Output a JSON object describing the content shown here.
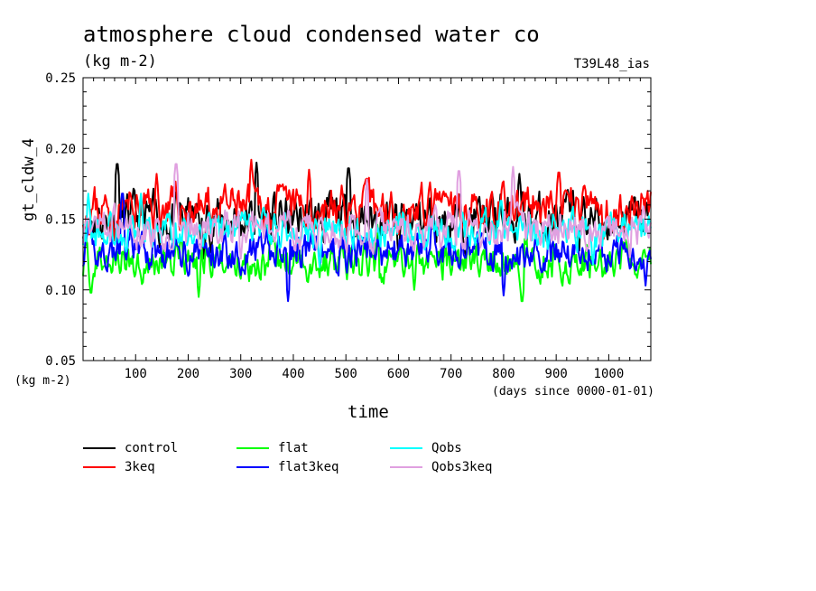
{
  "header": {
    "title": "atmosphere cloud condensed water co",
    "units": "(kg m-2)",
    "run_id": "T39L48_ias"
  },
  "chart_data": {
    "type": "line",
    "title": "atmosphere cloud condensed water co",
    "ylabel": "gt_cldw_4",
    "yunit": "(kg m-2)",
    "xlabel": "time",
    "xunit": "(days since 0000-01-01)",
    "xlim": [
      0,
      1080
    ],
    "ylim": [
      0.05,
      0.25
    ],
    "xticks": [
      100,
      200,
      300,
      400,
      500,
      600,
      700,
      800,
      900,
      1000
    ],
    "xtick_labels": [
      "100",
      "200",
      "300",
      "400",
      "500",
      "600",
      "700",
      "800",
      "900",
      "1000"
    ],
    "yticks": [
      0.05,
      0.1,
      0.15,
      0.2,
      0.25
    ],
    "ytick_labels": [
      "0.05",
      "0.10",
      "0.15",
      "0.20",
      "0.25"
    ],
    "grid": false,
    "legend_position": "bottom",
    "series": [
      {
        "name": "control",
        "color": "#000000",
        "mean": 0.15,
        "amp": 0.016,
        "seed": 11,
        "peaks": [
          [
            65,
            0.193
          ],
          [
            330,
            0.19
          ],
          [
            505,
            0.19
          ],
          [
            830,
            0.182
          ]
        ],
        "troughs": [
          [
            230,
            0.122
          ],
          [
            600,
            0.125
          ]
        ]
      },
      {
        "name": "3keq",
        "color": "#ff0000",
        "mean": 0.158,
        "amp": 0.014,
        "seed": 23,
        "peaks": [
          [
            320,
            0.192
          ],
          [
            905,
            0.187
          ],
          [
            430,
            0.185
          ],
          [
            140,
            0.182
          ]
        ],
        "troughs": [
          [
            60,
            0.135
          ],
          [
            990,
            0.136
          ]
        ]
      },
      {
        "name": "flat",
        "color": "#00ff00",
        "mean": 0.12,
        "amp": 0.012,
        "seed": 37,
        "peaks": [
          [
            560,
            0.146
          ],
          [
            15,
            0.15
          ]
        ],
        "troughs": [
          [
            835,
            0.088
          ],
          [
            15,
            0.094
          ],
          [
            220,
            0.095
          ],
          [
            630,
            0.1
          ]
        ]
      },
      {
        "name": "flat3keq",
        "color": "#0000ff",
        "mean": 0.127,
        "amp": 0.012,
        "seed": 41,
        "peaks": [
          [
            75,
            0.172
          ],
          [
            665,
            0.155
          ]
        ],
        "troughs": [
          [
            390,
            0.092
          ],
          [
            800,
            0.096
          ],
          [
            1070,
            0.103
          ]
        ]
      },
      {
        "name": "Qobs",
        "color": "#00ffff",
        "mean": 0.142,
        "amp": 0.012,
        "seed": 53,
        "peaks": [
          [
            10,
            0.168
          ],
          [
            795,
            0.167
          ],
          [
            110,
            0.168
          ]
        ],
        "troughs": [
          [
            450,
            0.116
          ],
          [
            970,
            0.118
          ]
        ]
      },
      {
        "name": "Qobs3keq",
        "color": "#e0a0e0",
        "mean": 0.143,
        "amp": 0.012,
        "seed": 67,
        "peaks": [
          [
            177,
            0.193
          ],
          [
            715,
            0.188
          ],
          [
            818,
            0.187
          ],
          [
            540,
            0.178
          ]
        ],
        "troughs": [
          [
            300,
            0.122
          ],
          [
            1040,
            0.123
          ]
        ]
      }
    ]
  }
}
